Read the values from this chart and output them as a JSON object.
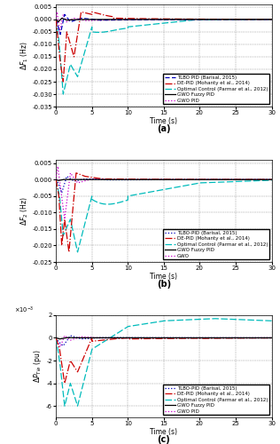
{
  "subplot_a": {
    "ylabel": "$\\Delta F_1$ (Hz)",
    "ylim": [
      -0.035,
      0.006
    ],
    "yticks": [
      -0.035,
      -0.03,
      -0.025,
      -0.02,
      -0.015,
      -0.01,
      -0.005,
      0,
      0.005
    ],
    "label": "(a)"
  },
  "subplot_b": {
    "ylabel": "$\\Delta F_2$ (Hz)",
    "ylim": [
      -0.025,
      0.006
    ],
    "yticks": [
      -0.025,
      -0.02,
      -0.015,
      -0.01,
      -0.005,
      0,
      0.005
    ],
    "label": "(b)"
  },
  "subplot_c": {
    "ylabel": "$\\Delta P_{Tie}$ (pu)",
    "ylim": [
      -0.007,
      0.002
    ],
    "yticks": [
      -0.006,
      -0.004,
      -0.002,
      0,
      0.002
    ],
    "label": "(c)"
  },
  "colors": {
    "TLBO": "#0000bb",
    "DE": "#cc0000",
    "Optimal": "#00bbbb",
    "GWO_Fuzzy": "#000000",
    "GWO_PID": "#cc00cc"
  },
  "legend_a": [
    "TLBO PID (Barisal, 2015)",
    "DE-PID (Mohanty et al., 2014)",
    "Optimal Control (Parmar et al., 2012)",
    "GWO Fuzzy PID",
    "GWO PID"
  ],
  "legend_b": [
    "TLBO-PID (Barisal, 2015)",
    "DE-PID (Mohanty et al., 2014)",
    "Optimal Control (Parmar et al., 2012)",
    "GWO Fuzzy PID",
    "GWO"
  ],
  "legend_c": [
    "TLBO-PID (Barisal, 2015)",
    "DE-PID (Mohanty et al., 2014)",
    "Optimal Control (Parmar et al., 2012)",
    "GWO Fuzzy PID",
    "GWO PID"
  ],
  "xlabel": "Time (s)",
  "xticks": [
    0,
    5,
    10,
    15,
    20,
    25,
    30
  ]
}
